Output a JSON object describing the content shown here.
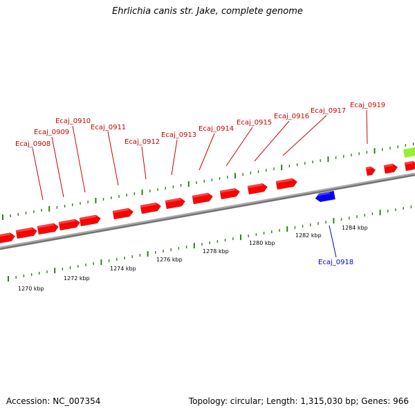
{
  "title": "Ehrlichia canis str. Jake, complete genome",
  "footer": {
    "accession": "Accession: NC_007354",
    "stats": "Topology: circular; Length: 1,315,030 bp; Genes: 966"
  },
  "colors": {
    "forward_gene": "#ff0000",
    "reverse_gene": "#0000ff",
    "rna_feature": "#99ee33",
    "forward_label": "#cc0000",
    "reverse_label": "#0000cc",
    "backbone": "#808080",
    "tick": "#2e7d1e"
  },
  "scale_labels": [
    "1270 kbp",
    "1272 kbp",
    "1274 kbp",
    "1276 kbp",
    "1278 kbp",
    "1280 kbp",
    "1282 kbp",
    "1284 kbp"
  ],
  "forward_genes": [
    "Ecaj_0908",
    "Ecaj_0909",
    "Ecaj_0910",
    "Ecaj_0911",
    "Ecaj_0912",
    "Ecaj_0913",
    "Ecaj_0914",
    "Ecaj_0915",
    "Ecaj_0916",
    "Ecaj_0917",
    "Ecaj_0919"
  ],
  "reverse_genes": [
    "Ecaj_0918"
  ]
}
